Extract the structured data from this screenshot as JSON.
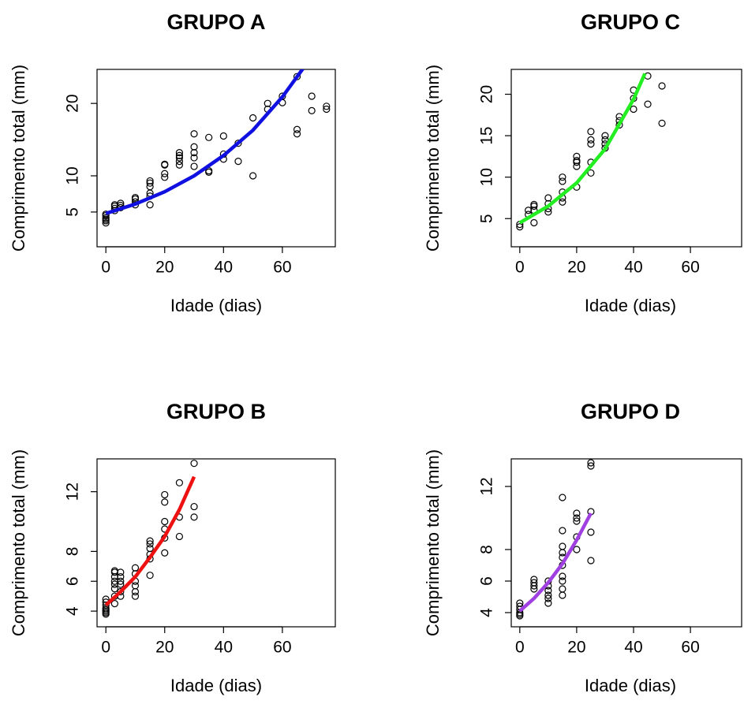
{
  "chart_data": [
    {
      "type": "scatter",
      "title": "GRUPO A",
      "x_label": "Idade (dias)",
      "y_label": "Comprimento total (mm)",
      "xlim": [
        -3,
        78
      ],
      "xticks": [
        0,
        20,
        40,
        60
      ],
      "ylim": [
        0.2,
        24.7
      ],
      "yticks": [
        5,
        10,
        20
      ],
      "x": [
        0,
        0,
        0,
        0,
        0,
        0,
        3,
        3,
        3,
        3,
        5,
        5,
        5,
        10,
        10,
        10,
        10,
        15,
        15,
        15,
        15,
        15,
        15,
        20,
        20,
        20,
        20,
        25,
        25,
        25,
        25,
        25,
        30,
        30,
        30,
        30,
        30,
        35,
        35,
        35,
        40,
        40,
        40,
        45,
        45,
        50,
        50,
        55,
        55,
        60,
        60,
        65,
        65,
        65,
        70,
        70,
        75,
        75
      ],
      "values": [
        3.5,
        3.8,
        4.0,
        4.2,
        4.5,
        4.7,
        5.2,
        5.5,
        5.8,
        6.0,
        5.6,
        5.9,
        6.2,
        6.0,
        6.4,
        6.8,
        7.0,
        6.0,
        7.2,
        7.6,
        8.5,
        9.0,
        9.3,
        9.8,
        10.3,
        11.5,
        11.6,
        11.5,
        12.0,
        12.5,
        12.8,
        13.2,
        11.3,
        12.5,
        13.2,
        14.0,
        15.8,
        10.5,
        10.7,
        15.3,
        12.3,
        13.0,
        15.5,
        12.0,
        14.5,
        10.0,
        18.0,
        19.2,
        20.0,
        20.1,
        21.0,
        15.8,
        16.4,
        23.7,
        19.0,
        21.0,
        19.2,
        19.6
      ],
      "fit": {
        "color": "#1010e0",
        "x": [
          0,
          10,
          20,
          30,
          40,
          50,
          60,
          67
        ],
        "values": [
          4.8,
          6.1,
          7.8,
          10.0,
          12.8,
          16.3,
          20.9,
          24.8
        ]
      }
    },
    {
      "type": "scatter",
      "title": "GRUPO C",
      "x_label": "Idade (dias)",
      "y_label": "Comprimento total (mm)",
      "xlim": [
        -3,
        78
      ],
      "xticks": [
        0,
        20,
        40,
        60
      ],
      "ylim": [
        1.6,
        23.0
      ],
      "yticks": [
        5,
        10,
        15,
        20
      ],
      "x": [
        0,
        0,
        3,
        3,
        5,
        5,
        5,
        5,
        10,
        10,
        10,
        10,
        15,
        15,
        15,
        15,
        15,
        20,
        20,
        20,
        20,
        20,
        25,
        25,
        25,
        25,
        25,
        30,
        30,
        30,
        30,
        35,
        35,
        35,
        40,
        40,
        40,
        45,
        45,
        50,
        50
      ],
      "values": [
        4.0,
        4.3,
        5.5,
        6.0,
        4.5,
        6.0,
        6.5,
        6.7,
        5.8,
        6.2,
        6.8,
        7.5,
        7.0,
        7.5,
        8.2,
        9.5,
        10.0,
        8.8,
        11.3,
        11.8,
        12.0,
        12.5,
        10.5,
        11.8,
        14.0,
        14.5,
        15.5,
        13.5,
        14.0,
        14.5,
        15.0,
        16.3,
        16.8,
        17.3,
        18.2,
        19.5,
        20.5,
        18.8,
        22.2,
        16.5,
        21.0
      ],
      "fit": {
        "color": "#22ee22",
        "x": [
          0,
          10,
          20,
          30,
          40,
          44
        ],
        "values": [
          4.5,
          6.5,
          9.3,
          13.4,
          19.4,
          22.5
        ]
      }
    },
    {
      "type": "scatter",
      "title": "GRUPO B",
      "x_label": "Idade (dias)",
      "y_label": "Comprimento total (mm)",
      "xlim": [
        -3,
        78
      ],
      "xticks": [
        0,
        20,
        40,
        60
      ],
      "ylim": [
        2.95,
        14.2
      ],
      "yticks": [
        4,
        6,
        8,
        12
      ],
      "x": [
        0,
        0,
        0,
        0,
        0,
        0,
        0,
        0,
        3,
        3,
        3,
        3,
        3,
        3,
        3,
        3,
        5,
        5,
        5,
        5,
        5,
        5,
        10,
        10,
        10,
        10,
        10,
        10,
        15,
        15,
        15,
        15,
        15,
        15,
        20,
        20,
        20,
        20,
        20,
        20,
        25,
        25,
        25,
        30,
        30,
        30
      ],
      "values": [
        3.8,
        3.9,
        4.0,
        4.1,
        4.2,
        4.4,
        4.6,
        4.8,
        4.5,
        5.0,
        5.5,
        5.8,
        6.0,
        6.3,
        6.6,
        6.7,
        5.0,
        5.3,
        5.8,
        6.0,
        6.3,
        6.6,
        5.0,
        5.3,
        5.7,
        6.0,
        6.5,
        6.9,
        6.4,
        7.5,
        7.8,
        8.2,
        8.5,
        8.7,
        7.9,
        8.9,
        9.5,
        10.0,
        11.3,
        11.8,
        9.0,
        10.3,
        12.6,
        10.3,
        11.0,
        13.9
      ],
      "fit": {
        "color": "#ee1111",
        "x": [
          0,
          5,
          10,
          15,
          20,
          25,
          30
        ],
        "values": [
          4.4,
          5.3,
          6.3,
          7.6,
          9.0,
          10.8,
          13.0
        ]
      }
    },
    {
      "type": "scatter",
      "title": "GRUPO D",
      "x_label": "Idade (dias)",
      "y_label": "Comprimento total (mm)",
      "xlim": [
        -3,
        78
      ],
      "xticks": [
        0,
        20,
        40,
        60
      ],
      "ylim": [
        3.1,
        13.75
      ],
      "yticks": [
        4,
        6,
        8,
        12
      ],
      "x": [
        0,
        0,
        0,
        0,
        0,
        0,
        5,
        5,
        5,
        5,
        10,
        10,
        10,
        10,
        10,
        10,
        15,
        15,
        15,
        15,
        15,
        15,
        15,
        15,
        15,
        15,
        20,
        20,
        20,
        20,
        20,
        25,
        25,
        25,
        25,
        25
      ],
      "values": [
        3.8,
        3.9,
        4.0,
        4.2,
        4.4,
        4.6,
        5.5,
        5.7,
        5.9,
        6.1,
        4.6,
        4.9,
        5.1,
        5.4,
        5.7,
        6.0,
        5.1,
        5.5,
        6.0,
        6.3,
        7.0,
        7.5,
        7.8,
        8.2,
        9.2,
        11.3,
        8.0,
        8.8,
        9.8,
        10.0,
        10.3,
        7.3,
        9.1,
        10.4,
        13.3,
        13.5
      ],
      "fit": {
        "color": "#a040e0",
        "x": [
          0,
          5,
          10,
          15,
          20,
          25
        ],
        "values": [
          4.1,
          4.9,
          5.9,
          7.1,
          8.6,
          10.3
        ]
      }
    }
  ]
}
